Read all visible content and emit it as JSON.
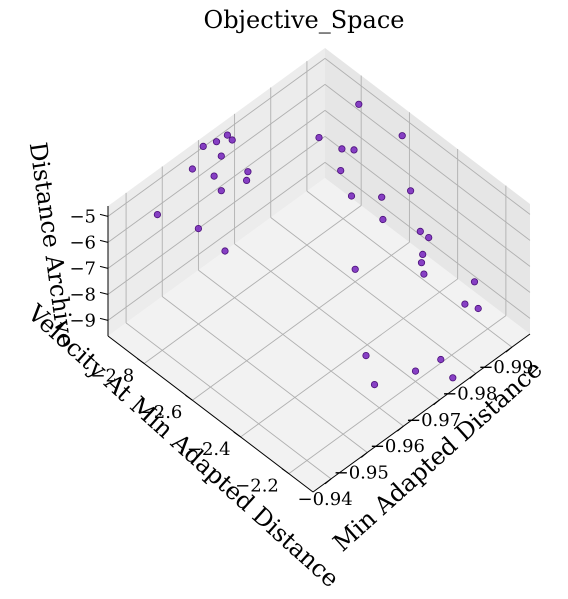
{
  "chart_data": {
    "type": "scatter",
    "title": "Objective_Space",
    "xlabel": "Min Adapted Distance",
    "ylabel": "Velocity At Min Adapted Distance",
    "zlabel": "Distance Archive",
    "xlim": [
      -0.995,
      -0.935
    ],
    "ylim": [
      -2.95,
      -2.1
    ],
    "zlim": [
      -9.6,
      -4.6
    ],
    "x_ticks": [
      -0.99,
      -0.98,
      -0.97,
      -0.96,
      -0.95,
      -0.94
    ],
    "x_tick_labels": [
      "−0.99",
      "−0.98",
      "−0.97",
      "−0.96",
      "−0.95",
      "−0.94"
    ],
    "y_ticks": [
      -2.8,
      -2.6,
      -2.4,
      -2.2
    ],
    "y_tick_labels": [
      "−2.8",
      "−2.6",
      "−2.4",
      "−2.2"
    ],
    "z_ticks": [
      -5,
      -6,
      -7,
      -8,
      -9
    ],
    "z_tick_labels": [
      "−5",
      "−6",
      "−7",
      "−8",
      "−9"
    ],
    "grid": true,
    "marker_color": "#7b2cbf",
    "marker_edge": "#4b0f7a",
    "points": [
      {
        "x": -0.944,
        "y": -2.88,
        "z": -5.35
      },
      {
        "x": -0.946,
        "y": -2.74,
        "z": -5.1
      },
      {
        "x": -0.948,
        "y": -2.66,
        "z": -5.6
      },
      {
        "x": -0.955,
        "y": -2.9,
        "z": -4.85
      },
      {
        "x": -0.957,
        "y": -2.84,
        "z": -4.9
      },
      {
        "x": -0.957,
        "y": -2.81,
        "z": -5.25
      },
      {
        "x": -0.96,
        "y": -2.93,
        "z": -4.7
      },
      {
        "x": -0.961,
        "y": -2.87,
        "z": -4.75
      },
      {
        "x": -0.962,
        "y": -2.78,
        "z": -5.15
      },
      {
        "x": -0.963,
        "y": -2.92,
        "z": -4.75
      },
      {
        "x": -0.965,
        "y": -2.82,
        "z": -5.4
      },
      {
        "x": -0.966,
        "y": -2.9,
        "z": -4.85
      },
      {
        "x": -0.966,
        "y": -2.92,
        "z": -4.8
      },
      {
        "x": -0.978,
        "y": -2.72,
        "z": -4.7
      },
      {
        "x": -0.97,
        "y": -2.45,
        "z": -7.05
      },
      {
        "x": -0.983,
        "y": -2.7,
        "z": -5.5
      },
      {
        "x": -0.985,
        "y": -2.68,
        "z": -5.6
      },
      {
        "x": -0.98,
        "y": -2.66,
        "z": -5.75
      },
      {
        "x": -0.979,
        "y": -2.6,
        "z": -6.2
      },
      {
        "x": -0.984,
        "y": -2.55,
        "z": -6.4
      },
      {
        "x": -0.981,
        "y": -2.5,
        "z": -6.6
      },
      {
        "x": -0.99,
        "y": -2.52,
        "z": -6.55
      },
      {
        "x": -0.987,
        "y": -2.4,
        "z": -7.2
      },
      {
        "x": -0.986,
        "y": -2.42,
        "z": -7.0
      },
      {
        "x": -0.984,
        "y": -2.38,
        "z": -7.4
      },
      {
        "x": -0.983,
        "y": -2.37,
        "z": -7.55
      },
      {
        "x": -0.981,
        "y": -2.33,
        "z": -7.5
      },
      {
        "x": -0.991,
        "y": -2.75,
        "z": -4.95
      },
      {
        "x": -0.993,
        "y": -2.6,
        "z": -5.3
      },
      {
        "x": -0.963,
        "y": -2.3,
        "z": -8.6
      },
      {
        "x": -0.96,
        "y": -2.22,
        "z": -8.85
      },
      {
        "x": -0.97,
        "y": -2.2,
        "z": -9.2
      },
      {
        "x": -0.975,
        "y": -2.17,
        "z": -9.05
      },
      {
        "x": -0.987,
        "y": -2.25,
        "z": -8.7
      },
      {
        "x": -0.975,
        "y": -2.12,
        "z": -9.4
      },
      {
        "x": -0.993,
        "y": -2.3,
        "z": -8.8
      },
      {
        "x": -0.99,
        "y": -2.24,
        "z": -9.1
      }
    ]
  }
}
